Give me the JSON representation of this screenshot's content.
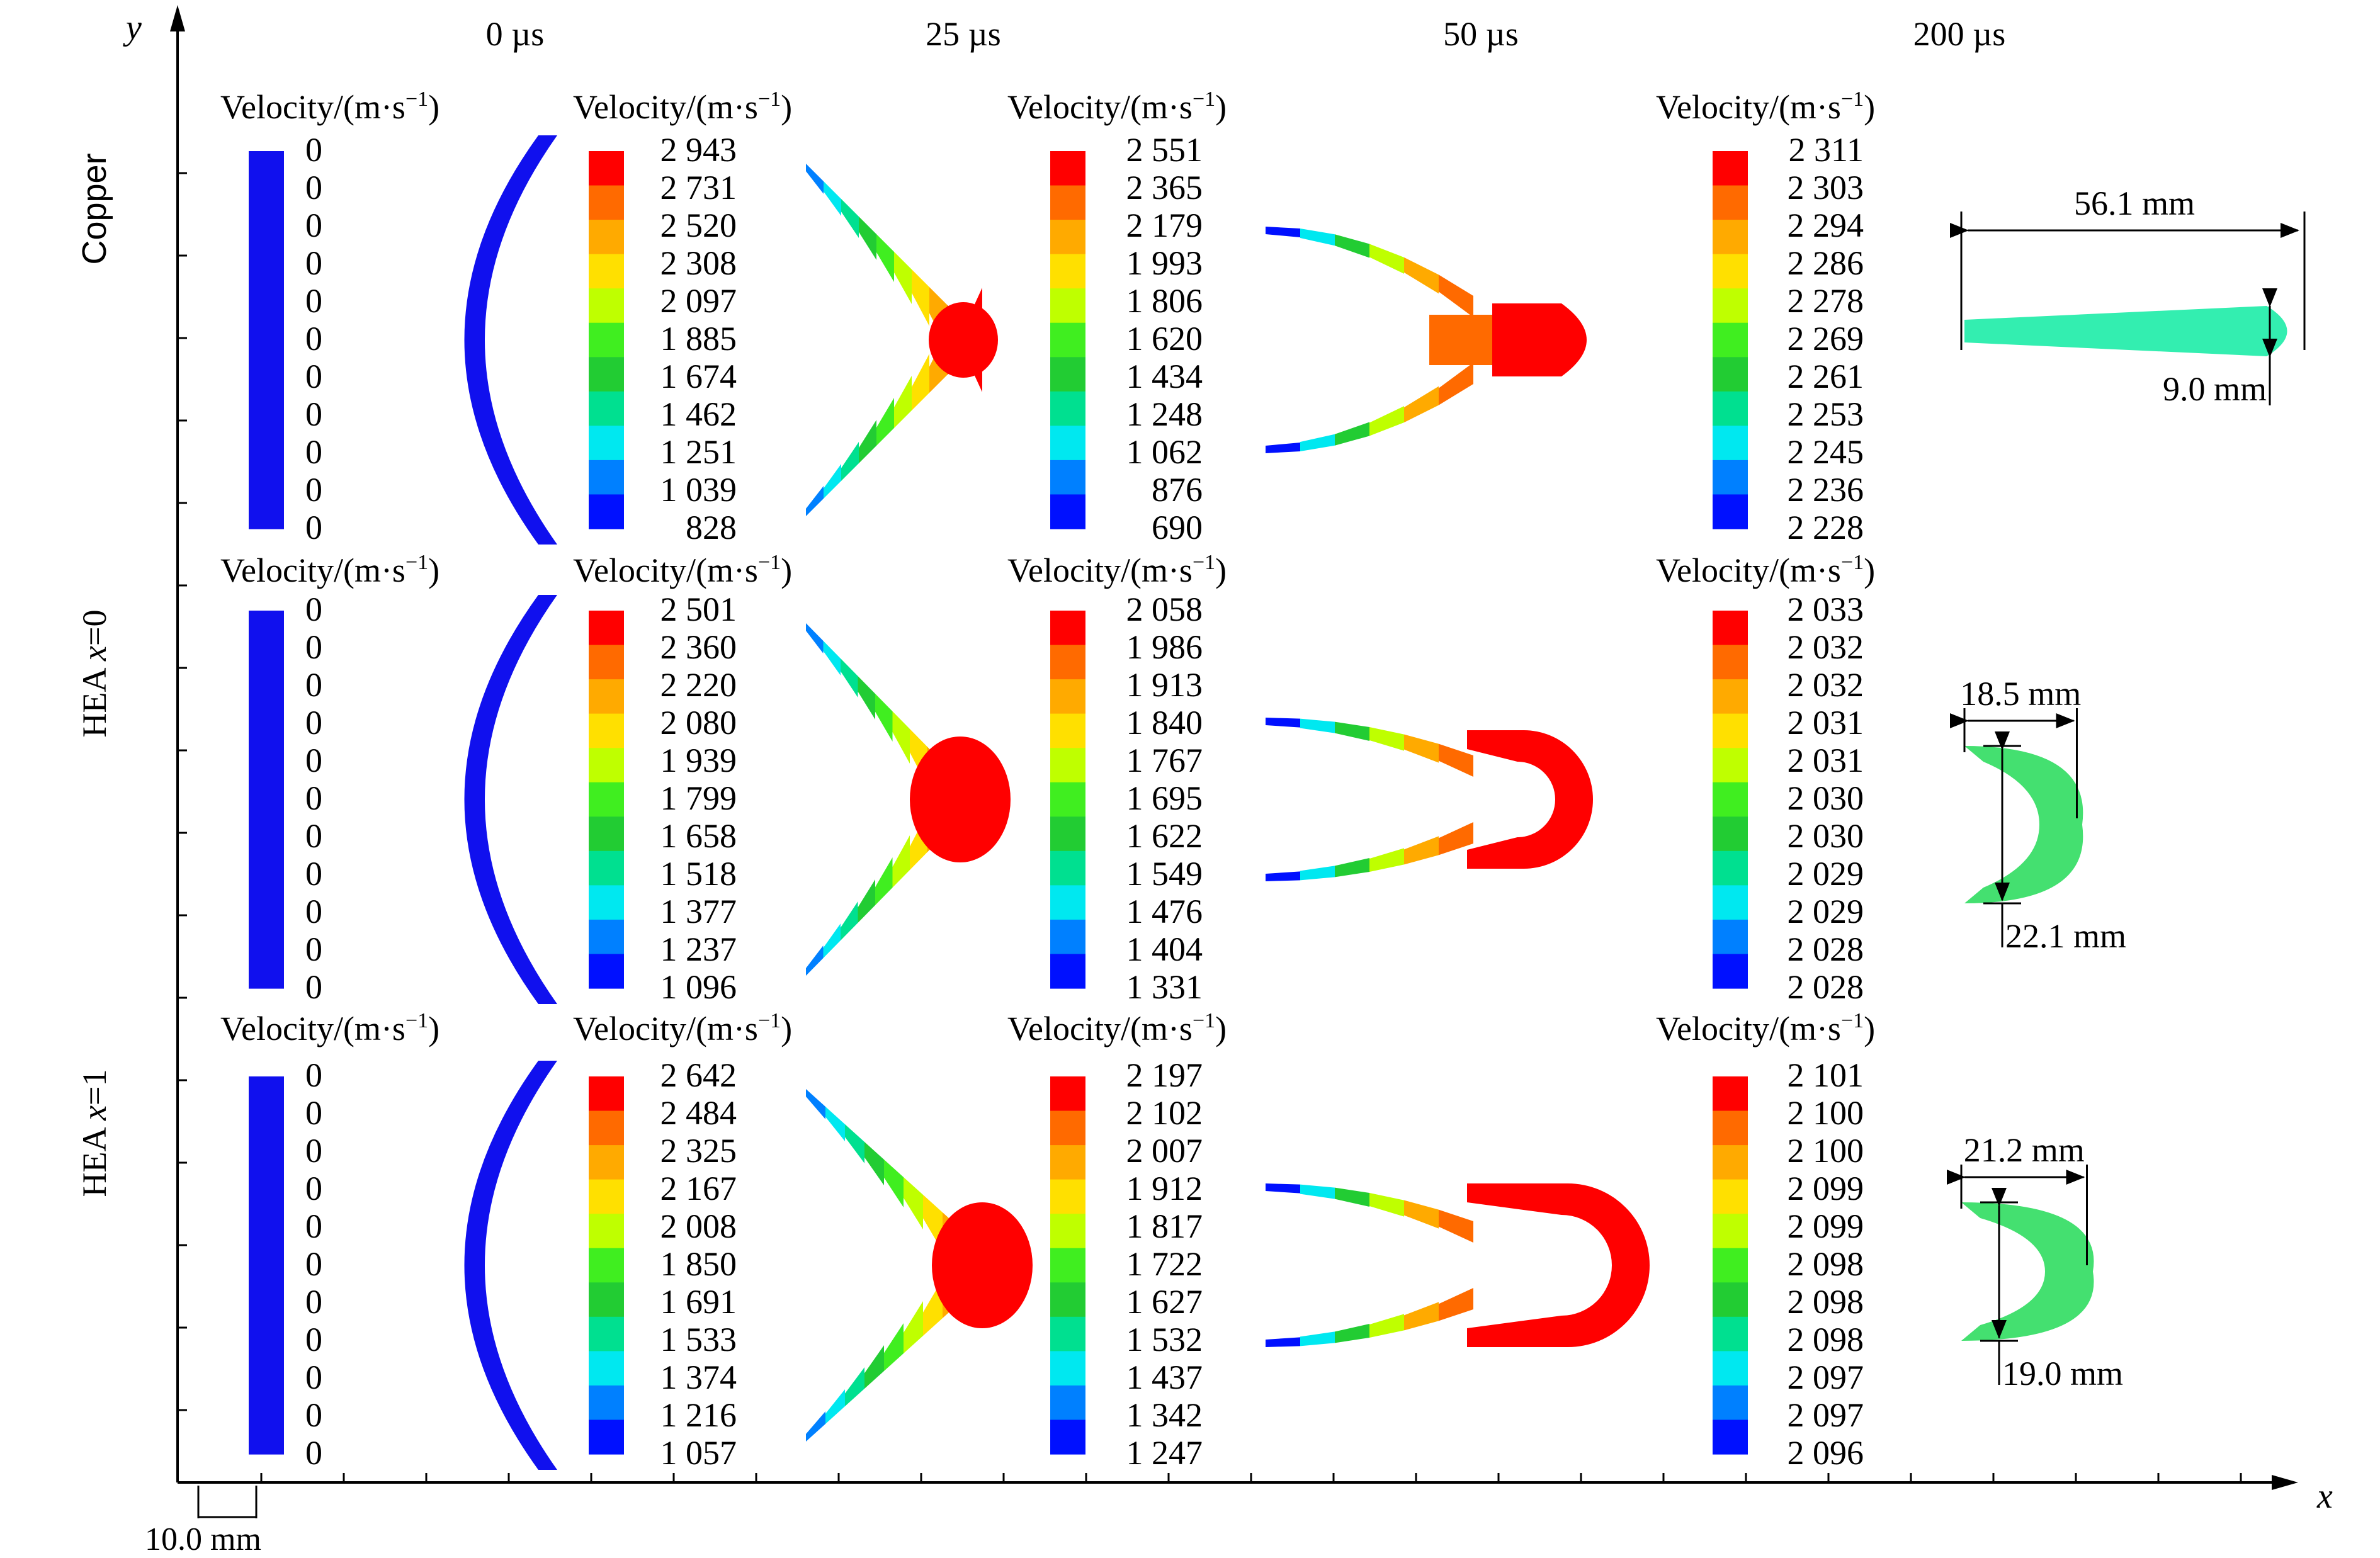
{
  "axes": {
    "x_label": "x",
    "y_label": "y"
  },
  "time_labels": [
    "0 µs",
    "25 µs",
    "50 µs",
    "200 µs"
  ],
  "row_labels": [
    {
      "prefix": "Copper",
      "italic": ""
    },
    {
      "prefix": "HEA ",
      "italic": "x",
      "suffix": "=0"
    },
    {
      "prefix": "HEA ",
      "italic": "x",
      "suffix": "=1"
    }
  ],
  "legend_title": "Velocity/(m·s",
  "legend_title_sup": "−1",
  "legend_title_close": ")",
  "rows": [
    {
      "legends": [
        [
          "0",
          "0",
          "0",
          "0",
          "0",
          "0",
          "0",
          "0",
          "0",
          "0",
          "0"
        ],
        [
          "2 943",
          "2 731",
          "2 520",
          "2 308",
          "2 097",
          "1 885",
          "1 674",
          "1 462",
          "1 251",
          "1 039",
          "828"
        ],
        [
          "2 551",
          "2 365",
          "2 179",
          "1 993",
          "1 806",
          "1 620",
          "1 434",
          "1 248",
          "1 062",
          "876",
          "690"
        ],
        [
          "2 311",
          "2 303",
          "2 294",
          "2 286",
          "2 278",
          "2 269",
          "2 261",
          "2 253",
          "2 245",
          "2 236",
          "2 228"
        ]
      ],
      "dims": {
        "length": "56.1 mm",
        "diameter": "9.0 mm"
      }
    },
    {
      "legends": [
        [
          "0",
          "0",
          "0",
          "0",
          "0",
          "0",
          "0",
          "0",
          "0",
          "0",
          "0"
        ],
        [
          "2 501",
          "2 360",
          "2 220",
          "2 080",
          "1 939",
          "1 799",
          "1 658",
          "1 518",
          "1 377",
          "1 237",
          "1 096"
        ],
        [
          "2 058",
          "1 986",
          "1 913",
          "1 840",
          "1 767",
          "1 695",
          "1 622",
          "1 549",
          "1 476",
          "1 404",
          "1 331"
        ],
        [
          "2 033",
          "2 032",
          "2 032",
          "2 031",
          "2 031",
          "2 030",
          "2 030",
          "2 029",
          "2 029",
          "2 028",
          "2 028"
        ]
      ],
      "dims": {
        "length": "18.5 mm",
        "diameter": "22.1 mm"
      }
    },
    {
      "legends": [
        [
          "0",
          "0",
          "0",
          "0",
          "0",
          "0",
          "0",
          "0",
          "0",
          "0",
          "0"
        ],
        [
          "2 642",
          "2 484",
          "2 325",
          "2 167",
          "2 008",
          "1 850",
          "1 691",
          "1 533",
          "1 374",
          "1 216",
          "1 057"
        ],
        [
          "2 197",
          "2 102",
          "2 007",
          "1 912",
          "1 817",
          "1 722",
          "1 627",
          "1 532",
          "1 437",
          "1 342",
          "1 247"
        ],
        [
          "2 101",
          "2 100",
          "2 100",
          "2 099",
          "2 099",
          "2 098",
          "2 098",
          "2 098",
          "2 097",
          "2 097",
          "2 096"
        ]
      ],
      "dims": {
        "length": "21.2 mm",
        "diameter": "19.0 mm"
      }
    }
  ],
  "scale_bar": "10.0 mm",
  "colors": {
    "scale": [
      "#ff0000",
      "#ff6a00",
      "#ffaa00",
      "#ffe000",
      "#bfff00",
      "#40ee20",
      "#22cc33",
      "#00e090",
      "#00e8f0",
      "#0080ff",
      "#0010ff"
    ],
    "plate": "#1010ee",
    "final_copper": "#33eeb0",
    "final_hea": "#44e070"
  }
}
